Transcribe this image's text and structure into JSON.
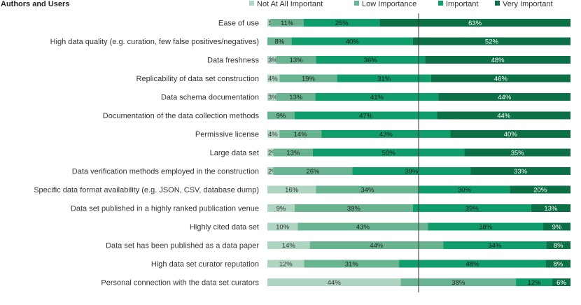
{
  "chart_data": {
    "type": "bar",
    "orientation": "horizontal",
    "stacked": true,
    "normalized_percent": true,
    "title": "Authors and Users",
    "legend_position": "top",
    "categories": [
      "Ease of use",
      "High data quality (e.g. curation, few false positives/negatives)",
      "Data freshness",
      "Replicability of data set construction",
      "Data schema documentation",
      "Documentation of the data collection methods",
      "Permissive license",
      "Large data set",
      "Data verification methods employed in the construction",
      "Specific data format availability (e.g. JSON, CSV, database dump)",
      "Data set published in a highly ranked publication venue",
      "Highly cited data set",
      "Data set has been published as a data paper",
      "High data set curator reputation",
      "Personal connection with the data set curators"
    ],
    "series": [
      {
        "name": "Not At All Important",
        "color": "#aed5c2",
        "text_color": "#333333",
        "values": [
          1,
          0,
          3,
          4,
          3,
          0,
          4,
          2,
          2,
          16,
          9,
          10,
          14,
          12,
          44
        ]
      },
      {
        "name": "Low Importance",
        "color": "#68b490",
        "text_color": "#222222",
        "values": [
          11,
          8,
          13,
          19,
          13,
          9,
          14,
          13,
          26,
          34,
          39,
          43,
          44,
          31,
          38
        ]
      },
      {
        "name": "Important",
        "color": "#0f9d6b",
        "text_color": "#1a1a1a",
        "values": [
          25,
          40,
          36,
          31,
          41,
          47,
          43,
          50,
          39,
          30,
          39,
          38,
          34,
          48,
          12
        ]
      },
      {
        "name": "Very Important",
        "color": "#0b7046",
        "text_color": "#ffffff",
        "values": [
          63,
          52,
          48,
          46,
          44,
          44,
          40,
          35,
          33,
          20,
          13,
          9,
          8,
          8,
          6
        ]
      }
    ],
    "grid": false,
    "reference_line": "midpoint"
  }
}
